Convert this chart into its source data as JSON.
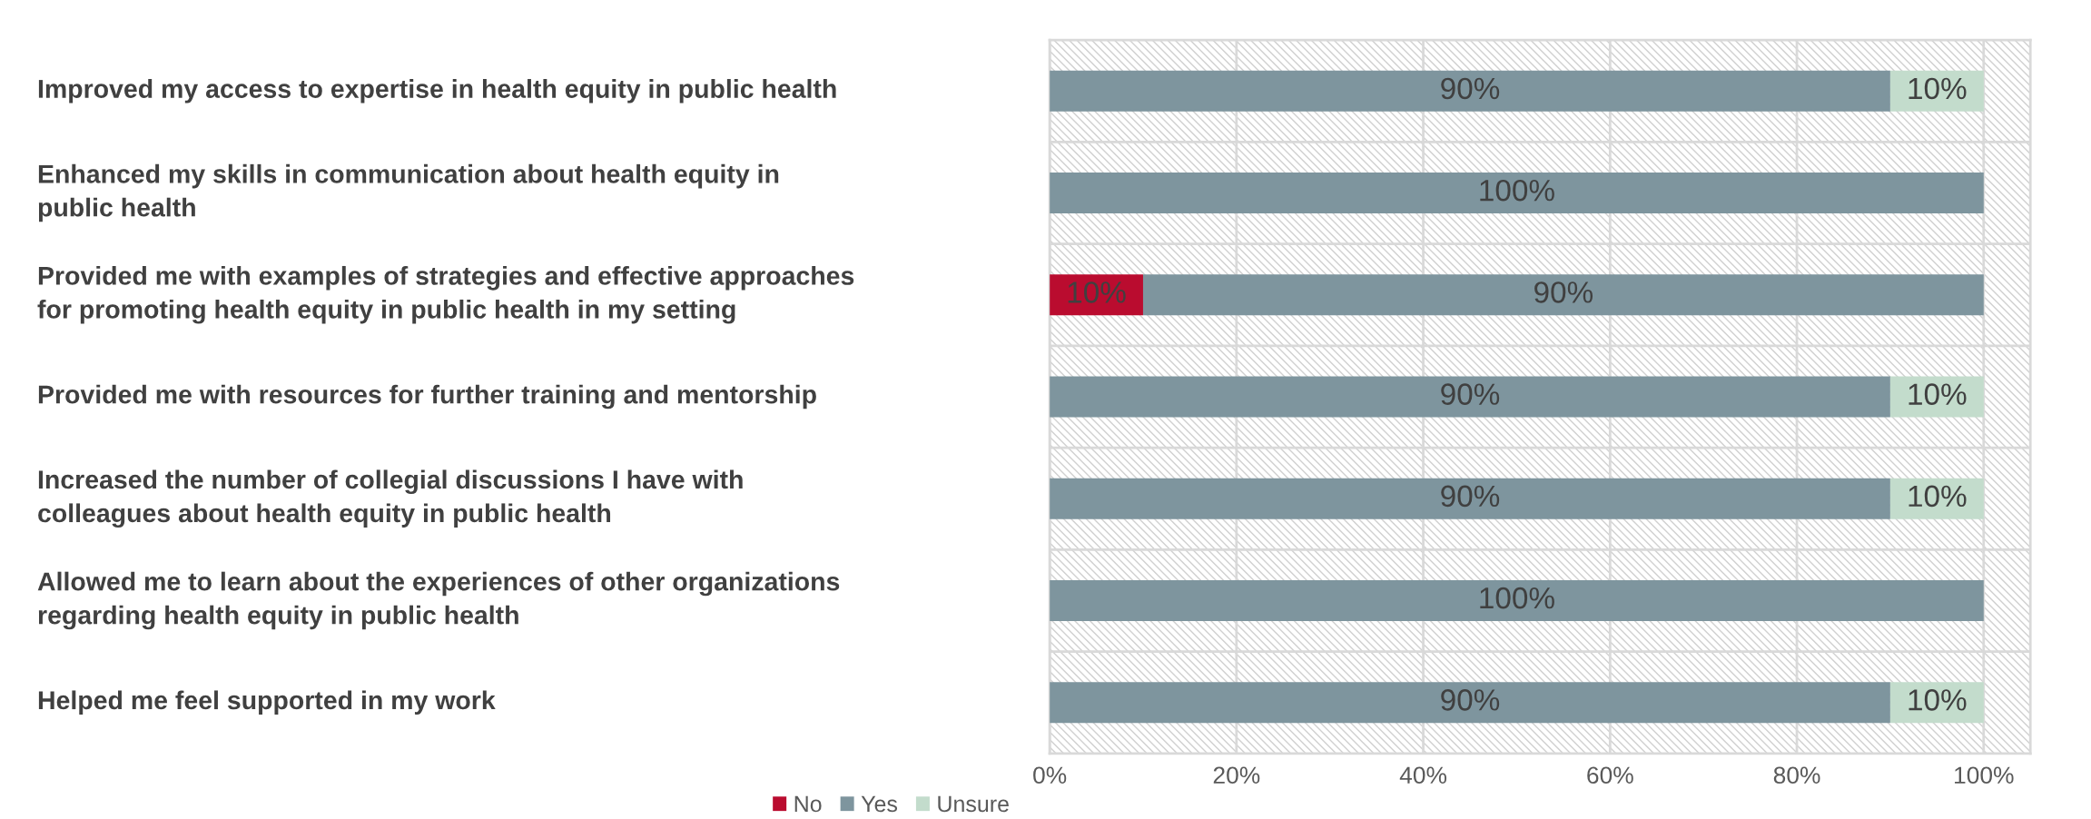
{
  "chart_data": {
    "type": "bar",
    "orientation": "horizontal",
    "stacked": true,
    "categories": [
      "Improved my access to expertise in health equity in public health",
      "Enhanced my skills in communication about health equity in\npublic health",
      "Provided me with examples of strategies and effective approaches\nfor promoting health equity in public health in my setting",
      "Provided me with resources for further training and mentorship",
      "Increased the number of collegial discussions I have with\ncolleagues about health equity in public health",
      "Allowed me to learn about the experiences of other organizations\nregarding health equity in public health",
      "Helped me feel supported in my work"
    ],
    "series": [
      {
        "name": "No",
        "color": "#ba0c2f",
        "values": [
          0,
          0,
          10,
          0,
          0,
          0,
          0
        ],
        "value_labels": [
          null,
          null,
          "10%",
          null,
          null,
          null,
          null
        ]
      },
      {
        "name": "Yes",
        "color": "#7e959e",
        "values": [
          90,
          100,
          90,
          90,
          90,
          100,
          90
        ],
        "value_labels": [
          "90%",
          "100%",
          "90%",
          "90%",
          "90%",
          "100%",
          "90%"
        ]
      },
      {
        "name": "Unsure",
        "color": "#c3dccc",
        "values": [
          10,
          0,
          0,
          10,
          10,
          0,
          10
        ],
        "value_labels": [
          "10%",
          null,
          null,
          "10%",
          "10%",
          null,
          "10%"
        ]
      }
    ],
    "xlim": [
      0,
      105
    ],
    "xticks": [
      {
        "value": 0,
        "label": "0%"
      },
      {
        "value": 20,
        "label": "20%"
      },
      {
        "value": 40,
        "label": "40%"
      },
      {
        "value": 60,
        "label": "60%"
      },
      {
        "value": 80,
        "label": "80%"
      },
      {
        "value": 100,
        "label": "100%"
      }
    ],
    "grid": true,
    "legend": "bottom left"
  }
}
